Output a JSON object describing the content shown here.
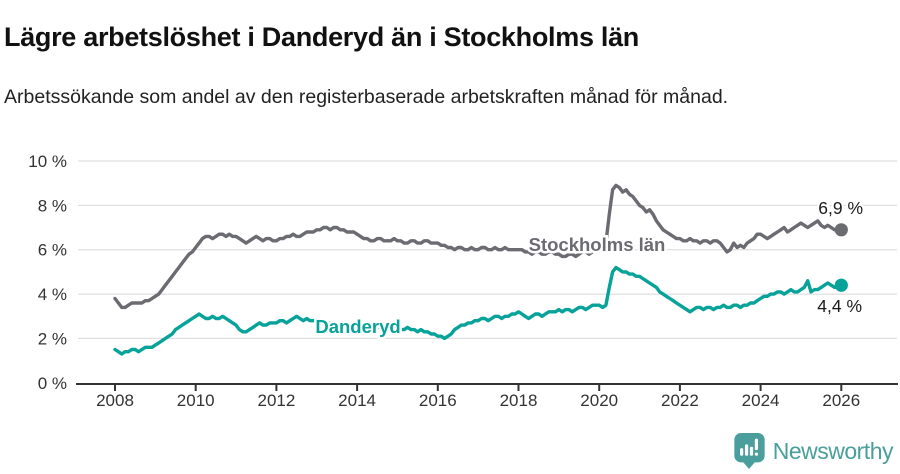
{
  "header": {
    "title": "Lägre arbetslöshet i Danderyd än i Stockholms län",
    "subtitle": "Arbetssökande som andel av den registerbaserade arbetskraften månad för månad."
  },
  "footer": {
    "brand": "Newsworthy"
  },
  "colors": {
    "stockholm_line": "#6b6b72",
    "danderyd_line": "#07a299",
    "axis_text": "#333333",
    "gridline": "#d8d8d8",
    "end_label_text": "#1a1a1a",
    "brand_teal": "#4a9e9c"
  },
  "chart_data": {
    "type": "line",
    "title": "Lägre arbetslöshet i Danderyd än i Stockholms län",
    "subtitle": "Arbetssökande som andel av den registerbaserade arbetskraften månad för månad.",
    "x_unit": "year, monthly points",
    "x_start": 2008.0,
    "x_step": 0.083333,
    "x_ticks": [
      2008,
      2010,
      2012,
      2014,
      2016,
      2018,
      2020,
      2022,
      2024,
      2026
    ],
    "ylim": [
      0,
      10
    ],
    "y_ticks": [
      0,
      2,
      4,
      6,
      8,
      10
    ],
    "y_suffix": " %",
    "grid": true,
    "legend_position": "inline-labels",
    "series": [
      {
        "name": "Stockholms län",
        "color": "#6b6b72",
        "end_label": "6,9 %",
        "end_value": 6.9,
        "values": [
          3.8,
          3.6,
          3.4,
          3.4,
          3.5,
          3.6,
          3.6,
          3.6,
          3.6,
          3.7,
          3.7,
          3.8,
          3.9,
          4.0,
          4.2,
          4.4,
          4.6,
          4.8,
          5.0,
          5.2,
          5.4,
          5.6,
          5.8,
          5.9,
          6.1,
          6.3,
          6.5,
          6.6,
          6.6,
          6.5,
          6.6,
          6.7,
          6.7,
          6.6,
          6.7,
          6.6,
          6.6,
          6.5,
          6.4,
          6.3,
          6.4,
          6.5,
          6.6,
          6.5,
          6.4,
          6.5,
          6.5,
          6.4,
          6.4,
          6.5,
          6.5,
          6.6,
          6.6,
          6.7,
          6.6,
          6.6,
          6.7,
          6.8,
          6.8,
          6.8,
          6.9,
          6.9,
          7.0,
          7.0,
          6.9,
          7.0,
          7.0,
          6.9,
          6.9,
          6.8,
          6.8,
          6.8,
          6.7,
          6.6,
          6.5,
          6.5,
          6.4,
          6.4,
          6.5,
          6.5,
          6.4,
          6.4,
          6.4,
          6.5,
          6.4,
          6.4,
          6.3,
          6.3,
          6.4,
          6.4,
          6.3,
          6.3,
          6.4,
          6.4,
          6.3,
          6.3,
          6.3,
          6.2,
          6.2,
          6.1,
          6.1,
          6.0,
          6.1,
          6.1,
          6.0,
          6.0,
          6.1,
          6.0,
          6.0,
          6.1,
          6.1,
          6.0,
          6.0,
          6.1,
          6.0,
          6.0,
          6.1,
          6.0,
          6.0,
          6.0,
          6.0,
          6.0,
          5.9,
          5.9,
          5.8,
          5.9,
          5.9,
          5.8,
          5.8,
          5.9,
          5.9,
          5.8,
          5.8,
          5.7,
          5.7,
          5.8,
          5.8,
          5.7,
          5.8,
          5.9,
          5.9,
          5.8,
          5.9,
          6.0,
          6.0,
          6.1,
          6.3,
          7.6,
          8.7,
          8.9,
          8.8,
          8.6,
          8.7,
          8.5,
          8.4,
          8.2,
          8.0,
          7.9,
          7.7,
          7.8,
          7.6,
          7.3,
          7.1,
          6.9,
          6.8,
          6.7,
          6.6,
          6.5,
          6.5,
          6.4,
          6.4,
          6.5,
          6.4,
          6.4,
          6.3,
          6.4,
          6.4,
          6.3,
          6.4,
          6.4,
          6.3,
          6.1,
          5.9,
          6.0,
          6.3,
          6.1,
          6.2,
          6.1,
          6.3,
          6.4,
          6.5,
          6.7,
          6.7,
          6.6,
          6.5,
          6.6,
          6.7,
          6.8,
          6.9,
          7.0,
          6.8,
          6.9,
          7.0,
          7.1,
          7.2,
          7.1,
          7.0,
          7.1,
          7.2,
          7.3,
          7.1,
          7.0,
          7.1,
          7.0,
          6.9,
          6.9,
          6.9
        ]
      },
      {
        "name": "Danderyd",
        "color": "#07a299",
        "end_label": "4,4 %",
        "end_value": 4.4,
        "values": [
          1.5,
          1.4,
          1.3,
          1.4,
          1.4,
          1.5,
          1.5,
          1.4,
          1.5,
          1.6,
          1.6,
          1.6,
          1.7,
          1.8,
          1.9,
          2.0,
          2.1,
          2.2,
          2.4,
          2.5,
          2.6,
          2.7,
          2.8,
          2.9,
          3.0,
          3.1,
          3.0,
          2.9,
          2.9,
          3.0,
          2.9,
          2.9,
          3.0,
          2.9,
          2.8,
          2.7,
          2.6,
          2.4,
          2.3,
          2.3,
          2.4,
          2.5,
          2.6,
          2.7,
          2.6,
          2.6,
          2.7,
          2.7,
          2.7,
          2.8,
          2.8,
          2.7,
          2.8,
          2.9,
          3.0,
          2.9,
          2.8,
          2.9,
          2.8,
          2.8,
          2.8,
          2.7,
          2.8,
          2.7,
          2.7,
          2.6,
          2.7,
          2.6,
          2.6,
          2.7,
          2.6,
          2.6,
          2.6,
          2.5,
          2.6,
          2.5,
          2.5,
          2.6,
          2.5,
          2.5,
          2.6,
          2.5,
          2.5,
          2.4,
          2.5,
          2.4,
          2.4,
          2.5,
          2.4,
          2.4,
          2.3,
          2.4,
          2.3,
          2.3,
          2.2,
          2.2,
          2.1,
          2.1,
          2.0,
          2.1,
          2.2,
          2.4,
          2.5,
          2.6,
          2.6,
          2.7,
          2.7,
          2.8,
          2.8,
          2.9,
          2.9,
          2.8,
          2.9,
          3.0,
          3.0,
          2.9,
          3.0,
          3.0,
          3.1,
          3.1,
          3.2,
          3.1,
          3.0,
          2.9,
          3.0,
          3.1,
          3.1,
          3.0,
          3.1,
          3.2,
          3.2,
          3.2,
          3.3,
          3.2,
          3.3,
          3.3,
          3.2,
          3.3,
          3.4,
          3.4,
          3.3,
          3.4,
          3.5,
          3.5,
          3.5,
          3.4,
          3.5,
          4.3,
          5.0,
          5.2,
          5.1,
          5.0,
          5.0,
          4.9,
          4.9,
          4.8,
          4.8,
          4.7,
          4.6,
          4.5,
          4.4,
          4.3,
          4.1,
          4.0,
          3.9,
          3.8,
          3.7,
          3.6,
          3.5,
          3.4,
          3.3,
          3.2,
          3.3,
          3.4,
          3.4,
          3.3,
          3.4,
          3.4,
          3.3,
          3.4,
          3.4,
          3.5,
          3.4,
          3.4,
          3.5,
          3.5,
          3.4,
          3.5,
          3.5,
          3.6,
          3.6,
          3.7,
          3.8,
          3.9,
          3.9,
          4.0,
          4.0,
          4.1,
          4.1,
          4.0,
          4.1,
          4.2,
          4.1,
          4.1,
          4.2,
          4.3,
          4.6,
          4.1,
          4.2,
          4.2,
          4.3,
          4.4,
          4.5,
          4.4,
          4.3,
          4.4,
          4.4
        ]
      }
    ]
  }
}
